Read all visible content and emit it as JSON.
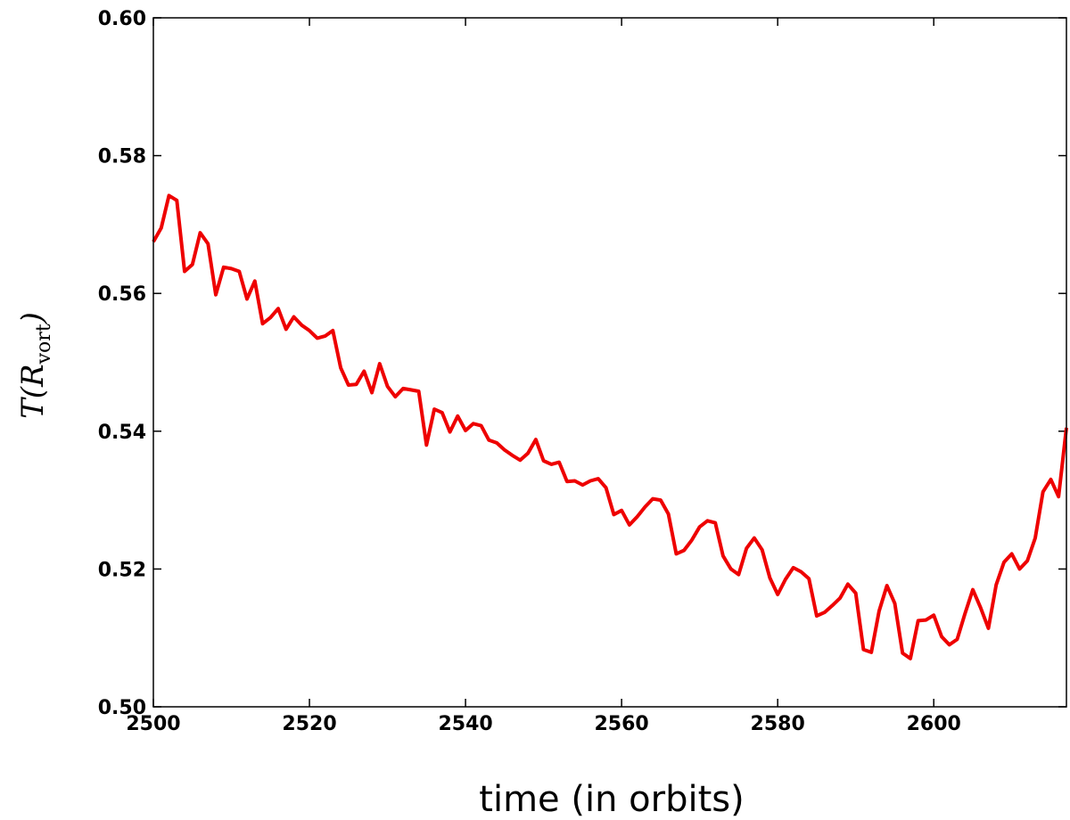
{
  "chart_data": {
    "type": "line",
    "xlabel": "time (in orbits)",
    "ylabel": {
      "main": "T(R",
      "sub": "vort",
      "close": ")"
    },
    "xlim": [
      2500,
      2617
    ],
    "ylim": [
      0.5,
      0.6
    ],
    "x_ticks": [
      2500,
      2520,
      2540,
      2560,
      2580,
      2600
    ],
    "x_tick_labels": [
      "2500",
      "2520",
      "2540",
      "2560",
      "2580",
      "2600"
    ],
    "y_ticks": [
      0.5,
      0.52,
      0.54,
      0.56,
      0.58,
      0.6
    ],
    "y_tick_labels": [
      "0.50",
      "0.52",
      "0.54",
      "0.56",
      "0.58",
      "0.60"
    ],
    "grid": false,
    "legend": "none",
    "series": [
      {
        "color": "#ee0000",
        "x": [
          2500,
          2501,
          2502,
          2503,
          2504,
          2505,
          2506,
          2507,
          2508,
          2509,
          2510,
          2511,
          2512,
          2513,
          2514,
          2515,
          2516,
          2517,
          2518,
          2519,
          2520,
          2521,
          2522,
          2523,
          2524,
          2525,
          2526,
          2527,
          2528,
          2529,
          2530,
          2531,
          2532,
          2533,
          2534,
          2535,
          2536,
          2537,
          2538,
          2539,
          2540,
          2541,
          2542,
          2543,
          2544,
          2545,
          2546,
          2547,
          2548,
          2549,
          2550,
          2551,
          2552,
          2553,
          2554,
          2555,
          2556,
          2557,
          2558,
          2559,
          2560,
          2561,
          2562,
          2563,
          2564,
          2565,
          2566,
          2567,
          2568,
          2569,
          2570,
          2571,
          2572,
          2573,
          2574,
          2575,
          2576,
          2577,
          2578,
          2579,
          2580,
          2581,
          2582,
          2583,
          2584,
          2585,
          2586,
          2587,
          2588,
          2589,
          2590,
          2591,
          2592,
          2593,
          2594,
          2595,
          2596,
          2597,
          2598,
          2599,
          2600,
          2601,
          2602,
          2603,
          2604,
          2605,
          2606,
          2607,
          2608,
          2609,
          2610,
          2611,
          2612,
          2613,
          2614,
          2615,
          2616,
          2617
        ],
        "y": [
          0.5675,
          0.5695,
          0.5742,
          0.5735,
          0.5632,
          0.5642,
          0.5688,
          0.5672,
          0.5598,
          0.5638,
          0.5636,
          0.5632,
          0.5592,
          0.5618,
          0.5556,
          0.5565,
          0.5578,
          0.5548,
          0.5566,
          0.5554,
          0.5546,
          0.5535,
          0.5538,
          0.5546,
          0.5492,
          0.5467,
          0.5468,
          0.5487,
          0.5456,
          0.5498,
          0.5465,
          0.545,
          0.5462,
          0.546,
          0.5458,
          0.538,
          0.5432,
          0.5427,
          0.5399,
          0.5422,
          0.5401,
          0.5411,
          0.5408,
          0.5387,
          0.5383,
          0.5373,
          0.5365,
          0.5358,
          0.5368,
          0.5388,
          0.5357,
          0.5352,
          0.5355,
          0.5327,
          0.5328,
          0.5322,
          0.5328,
          0.5331,
          0.5318,
          0.5279,
          0.5285,
          0.5264,
          0.5276,
          0.529,
          0.5302,
          0.53,
          0.528,
          0.5222,
          0.5227,
          0.5242,
          0.5261,
          0.527,
          0.5267,
          0.5219,
          0.52,
          0.5192,
          0.523,
          0.5245,
          0.5228,
          0.5187,
          0.5163,
          0.5185,
          0.5202,
          0.5196,
          0.5186,
          0.5132,
          0.5137,
          0.5147,
          0.5158,
          0.5178,
          0.5165,
          0.5083,
          0.5079,
          0.5139,
          0.5176,
          0.515,
          0.5078,
          0.507,
          0.5125,
          0.5126,
          0.5133,
          0.5102,
          0.509,
          0.5098,
          0.5135,
          0.517,
          0.5144,
          0.5114,
          0.5177,
          0.521,
          0.5222,
          0.52,
          0.5212,
          0.5245,
          0.5312,
          0.533,
          0.5305,
          0.5405
        ]
      }
    ]
  }
}
